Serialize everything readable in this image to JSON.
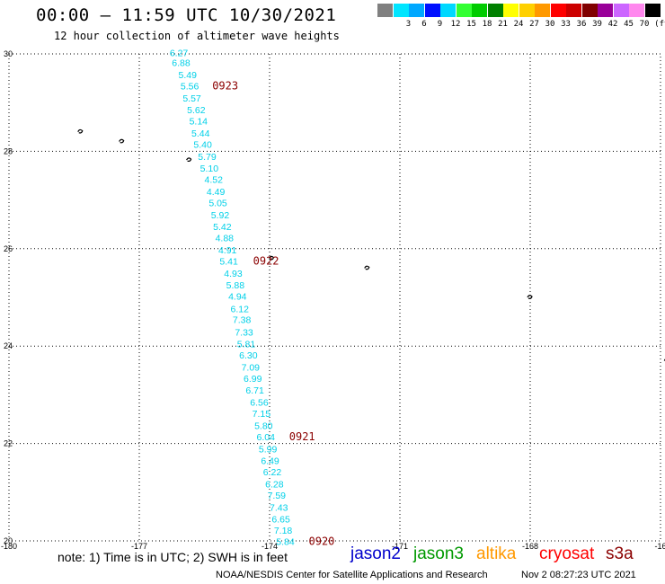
{
  "header": {
    "title": "00:00 – 11:59 UTC 10/30/2021",
    "subtitle": "12 hour collection of altimeter wave heights"
  },
  "color_scale": {
    "unit_label": "(ft)",
    "bins": [
      {
        "label": "",
        "color": "#808080"
      },
      {
        "label": "3",
        "color": "#00e5ff"
      },
      {
        "label": "6",
        "color": "#00a8ff"
      },
      {
        "label": "9",
        "color": "#0010ff"
      },
      {
        "label": "12",
        "color": "#00d8ff"
      },
      {
        "label": "15",
        "color": "#33ff33"
      },
      {
        "label": "18",
        "color": "#00cc00"
      },
      {
        "label": "21",
        "color": "#008000"
      },
      {
        "label": "24",
        "color": "#ffff00"
      },
      {
        "label": "27",
        "color": "#ffd000"
      },
      {
        "label": "30",
        "color": "#ff9900"
      },
      {
        "label": "33",
        "color": "#ff0000"
      },
      {
        "label": "36",
        "color": "#cc0000"
      },
      {
        "label": "39",
        "color": "#800000"
      },
      {
        "label": "42",
        "color": "#990099"
      },
      {
        "label": "45",
        "color": "#cc66ff"
      },
      {
        "label": "70",
        "color": "#ff88ee"
      },
      {
        "label": "",
        "color": "#000000"
      }
    ]
  },
  "axes": {
    "lon_ticks": [
      "-180",
      "-177",
      "-174",
      "-171",
      "-168",
      "-16"
    ],
    "lat_ticks": [
      "30",
      "28",
      "26",
      "24",
      "22",
      "20"
    ],
    "lon_range": [
      -180,
      -165
    ],
    "lat_range": [
      20,
      30
    ]
  },
  "track": {
    "color": "#00d0e8",
    "points": [
      {
        "lat": 29.95,
        "lon": -176.3,
        "swh": "6.27"
      },
      {
        "lat": 29.75,
        "lon": -176.25,
        "swh": "6.88"
      },
      {
        "lat": 29.5,
        "lon": -176.1,
        "swh": "5.49"
      },
      {
        "lat": 29.27,
        "lon": -176.05,
        "swh": "5.56"
      },
      {
        "lat": 29.02,
        "lon": -176.0,
        "swh": "5.57"
      },
      {
        "lat": 28.78,
        "lon": -175.9,
        "swh": "5.62"
      },
      {
        "lat": 28.55,
        "lon": -175.85,
        "swh": "5.14"
      },
      {
        "lat": 28.3,
        "lon": -175.8,
        "swh": "5.44"
      },
      {
        "lat": 28.07,
        "lon": -175.75,
        "swh": "5.40"
      },
      {
        "lat": 27.82,
        "lon": -175.65,
        "swh": "5.79"
      },
      {
        "lat": 27.58,
        "lon": -175.6,
        "swh": "5.10"
      },
      {
        "lat": 27.35,
        "lon": -175.5,
        "swh": "4.52"
      },
      {
        "lat": 27.1,
        "lon": -175.45,
        "swh": "4.49"
      },
      {
        "lat": 26.87,
        "lon": -175.4,
        "swh": "5.05"
      },
      {
        "lat": 26.62,
        "lon": -175.35,
        "swh": "5.92"
      },
      {
        "lat": 26.38,
        "lon": -175.3,
        "swh": "5.42"
      },
      {
        "lat": 26.15,
        "lon": -175.25,
        "swh": "4.88"
      },
      {
        "lat": 25.9,
        "lon": -175.18,
        "swh": "4.91"
      },
      {
        "lat": 25.67,
        "lon": -175.15,
        "swh": "5.41"
      },
      {
        "lat": 25.42,
        "lon": -175.05,
        "swh": "4.93"
      },
      {
        "lat": 25.18,
        "lon": -175.0,
        "swh": "5.88"
      },
      {
        "lat": 24.95,
        "lon": -174.95,
        "swh": "4.94"
      },
      {
        "lat": 24.7,
        "lon": -174.9,
        "swh": "6.12"
      },
      {
        "lat": 24.47,
        "lon": -174.85,
        "swh": "7.38"
      },
      {
        "lat": 24.22,
        "lon": -174.8,
        "swh": "7.33"
      },
      {
        "lat": 23.98,
        "lon": -174.75,
        "swh": "5.81"
      },
      {
        "lat": 23.75,
        "lon": -174.7,
        "swh": "6.30"
      },
      {
        "lat": 23.5,
        "lon": -174.65,
        "swh": "7.09"
      },
      {
        "lat": 23.27,
        "lon": -174.6,
        "swh": "6.99"
      },
      {
        "lat": 23.03,
        "lon": -174.55,
        "swh": "6.71"
      },
      {
        "lat": 22.78,
        "lon": -174.45,
        "swh": "6.56"
      },
      {
        "lat": 22.55,
        "lon": -174.4,
        "swh": "7.15"
      },
      {
        "lat": 22.3,
        "lon": -174.35,
        "swh": "5.80"
      },
      {
        "lat": 22.07,
        "lon": -174.3,
        "swh": "6.04"
      },
      {
        "lat": 21.82,
        "lon": -174.25,
        "swh": "5.99"
      },
      {
        "lat": 21.58,
        "lon": -174.2,
        "swh": "6.49"
      },
      {
        "lat": 21.35,
        "lon": -174.15,
        "swh": "6.22"
      },
      {
        "lat": 21.1,
        "lon": -174.1,
        "swh": "6.28"
      },
      {
        "lat": 20.87,
        "lon": -174.05,
        "swh": "7.59"
      },
      {
        "lat": 20.62,
        "lon": -174.0,
        "swh": "7.43"
      },
      {
        "lat": 20.38,
        "lon": -173.95,
        "swh": "6.65"
      },
      {
        "lat": 20.15,
        "lon": -173.9,
        "swh": "7.18"
      },
      {
        "lat": 19.92,
        "lon": -173.85,
        "swh": "5.84"
      }
    ]
  },
  "time_labels": {
    "color": "#8b0000",
    "items": [
      {
        "text": "0923",
        "lat": 29.27,
        "lon": -175.32
      },
      {
        "text": "0922",
        "lat": 25.67,
        "lon": -174.38
      },
      {
        "text": "0921",
        "lat": 22.07,
        "lon": -173.55
      },
      {
        "text": "0920",
        "lat": 19.92,
        "lon": -173.1
      }
    ]
  },
  "islands": [
    {
      "name": "kure-atoll-icon",
      "lat": 28.4,
      "lon": -178.35
    },
    {
      "name": "midway-icon",
      "lat": 28.2,
      "lon": -177.4
    },
    {
      "name": "pearl-hermes-icon",
      "lat": 27.82,
      "lon": -175.85
    },
    {
      "name": "lisianski-icon",
      "lat": 25.8,
      "lon": -173.95
    },
    {
      "name": "laysan-icon",
      "lat": 25.6,
      "lon": -171.75
    },
    {
      "name": "gardner-icon",
      "lat": 25.0,
      "lon": -168.0
    },
    {
      "name": "necker-icon",
      "lat": 23.7,
      "lon": -164.85
    }
  ],
  "note": "note: 1) Time is in UTC; 2) SWH is in feet",
  "legend": [
    {
      "label": "jason2",
      "color": "#0000cc"
    },
    {
      "label": "jason3",
      "color": "#009900"
    },
    {
      "label": "altika",
      "color": "#ff9900"
    },
    {
      "label": "cryosat",
      "color": "#ff0000"
    },
    {
      "label": "s3a",
      "color": "#8b0000"
    }
  ],
  "footer": {
    "credit": "NOAA/NESDIS Center for Satellite Applications and Research",
    "timestamp": "Nov  2 08:27:23 UTC 2021"
  }
}
